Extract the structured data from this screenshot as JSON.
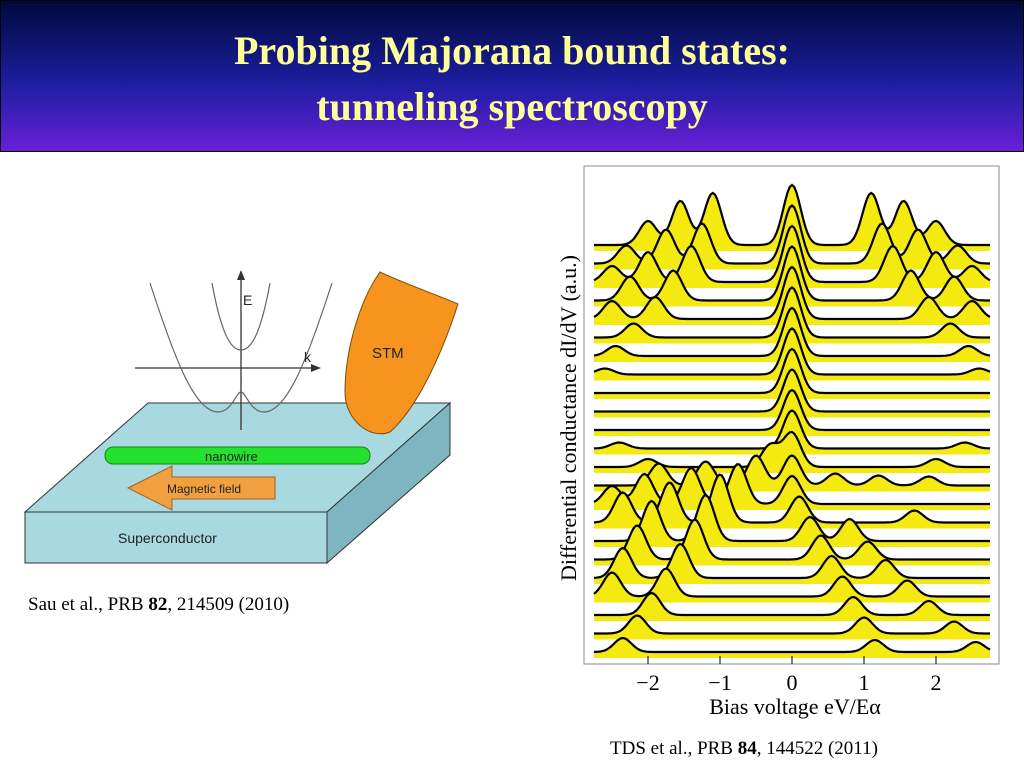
{
  "slide": {
    "title_line1": "Probing Majorana bound states:",
    "title_line2": "tunneling spectroscopy"
  },
  "schematic": {
    "axis_e_label": "E",
    "axis_k_label": "k",
    "stm_label": "STM",
    "nanowire_label": "nanowire",
    "field_label": "Magnetic field",
    "substrate_label": "Superconductor",
    "colors": {
      "substrate": "#a8d8e0",
      "nanowire": "#22e22e",
      "arrow": "#f0a040",
      "stm_tip": "#f7941d"
    }
  },
  "references": {
    "left": {
      "authors": "Sau et al., PRB ",
      "volume": "82",
      "rest": ", 214509 (2010)"
    },
    "right": {
      "authors": "TDS et al., PRB ",
      "volume": "84",
      "rest": ", 144522 (2011)"
    }
  },
  "chart_data": {
    "type": "line",
    "title": "",
    "xlabel": "Bias voltage  eV/Eα",
    "ylabel": "Differential conductance  dI/dV  (a.u.)",
    "xlim": [
      -2.75,
      2.75
    ],
    "x_ticks": [
      -2,
      -1,
      0,
      1,
      2
    ],
    "x_tick_labels": [
      "−2",
      "−1",
      "0",
      "1",
      "2"
    ],
    "fill_color": "#f5ea10",
    "line_color": "#000000",
    "grid": false,
    "zero_bias_peak_center": 0,
    "traces_top_to_bottom": [
      {
        "peaks": [
          [
            0,
            60
          ],
          [
            1.1,
            52
          ],
          [
            -1.1,
            52
          ],
          [
            1.55,
            44
          ],
          [
            -1.55,
            44
          ],
          [
            2.0,
            24
          ],
          [
            -2.0,
            24
          ]
        ]
      },
      {
        "peaks": [
          [
            0,
            58
          ],
          [
            1.25,
            40
          ],
          [
            -1.25,
            40
          ],
          [
            1.75,
            34
          ],
          [
            -1.75,
            34
          ],
          [
            2.3,
            18
          ],
          [
            -2.3,
            18
          ]
        ]
      },
      {
        "peaks": [
          [
            0,
            56
          ],
          [
            1.4,
            36
          ],
          [
            -1.4,
            36
          ],
          [
            2.0,
            30
          ],
          [
            -2.0,
            30
          ],
          [
            2.5,
            16
          ],
          [
            -2.5,
            16
          ]
        ]
      },
      {
        "peaks": [
          [
            0,
            54
          ],
          [
            1.65,
            30
          ],
          [
            -1.65,
            30
          ],
          [
            2.25,
            24
          ],
          [
            -2.25,
            24
          ]
        ]
      },
      {
        "peaks": [
          [
            0,
            52
          ],
          [
            1.9,
            22
          ],
          [
            -1.9,
            22
          ],
          [
            2.5,
            18
          ],
          [
            -2.5,
            18
          ]
        ]
      },
      {
        "peaks": [
          [
            0,
            50
          ],
          [
            2.2,
            14
          ],
          [
            -2.2,
            14
          ]
        ]
      },
      {
        "peaks": [
          [
            0,
            48
          ],
          [
            2.45,
            10
          ],
          [
            -2.45,
            10
          ]
        ]
      },
      {
        "peaks": [
          [
            0,
            46
          ],
          [
            2.6,
            6
          ],
          [
            -2.6,
            6
          ]
        ]
      },
      {
        "peaks": [
          [
            0,
            44
          ]
        ]
      },
      {
        "peaks": [
          [
            0,
            42
          ]
        ]
      },
      {
        "peaks": [
          [
            0,
            40
          ]
        ]
      },
      {
        "peaks": [
          [
            0,
            38
          ],
          [
            2.4,
            6
          ],
          [
            -2.4,
            6
          ]
        ]
      },
      {
        "peaks": [
          [
            0,
            34
          ],
          [
            -0.3,
            22
          ],
          [
            2.0,
            8
          ],
          [
            -2.0,
            8
          ]
        ]
      },
      {
        "peaks": [
          [
            0,
            30
          ],
          [
            -0.5,
            30
          ],
          [
            -1.2,
            24
          ],
          [
            -1.85,
            22
          ],
          [
            0.6,
            12
          ],
          [
            1.2,
            10
          ],
          [
            1.9,
            9
          ]
        ]
      },
      {
        "peaks": [
          [
            0,
            28
          ],
          [
            -0.75,
            40
          ],
          [
            -1.4,
            36
          ],
          [
            -2.05,
            30
          ],
          [
            -2.5,
            18
          ]
        ]
      },
      {
        "peaks": [
          [
            0.1,
            26
          ],
          [
            -1.0,
            48
          ],
          [
            -1.7,
            40
          ],
          [
            -2.35,
            30
          ],
          [
            1.7,
            12
          ]
        ]
      },
      {
        "peaks": [
          [
            0.25,
            24
          ],
          [
            -1.2,
            46
          ],
          [
            -1.95,
            40
          ],
          [
            0.8,
            22
          ]
        ]
      },
      {
        "peaks": [
          [
            0.4,
            24
          ],
          [
            -1.35,
            40
          ],
          [
            -2.15,
            34
          ],
          [
            1.05,
            18
          ]
        ]
      },
      {
        "peaks": [
          [
            0.55,
            22
          ],
          [
            -1.55,
            34
          ],
          [
            -2.35,
            30
          ],
          [
            1.3,
            18
          ]
        ]
      },
      {
        "peaks": [
          [
            0.7,
            20
          ],
          [
            -1.75,
            28
          ],
          [
            -2.5,
            24
          ],
          [
            1.6,
            16
          ]
        ]
      },
      {
        "peaks": [
          [
            0.85,
            18
          ],
          [
            -1.95,
            22
          ],
          [
            1.9,
            14
          ]
        ]
      },
      {
        "peaks": [
          [
            1.0,
            16
          ],
          [
            -2.15,
            18
          ],
          [
            2.25,
            12
          ]
        ]
      },
      {
        "peaks": [
          [
            1.15,
            12
          ],
          [
            -2.35,
            14
          ],
          [
            2.55,
            10
          ]
        ]
      }
    ]
  }
}
